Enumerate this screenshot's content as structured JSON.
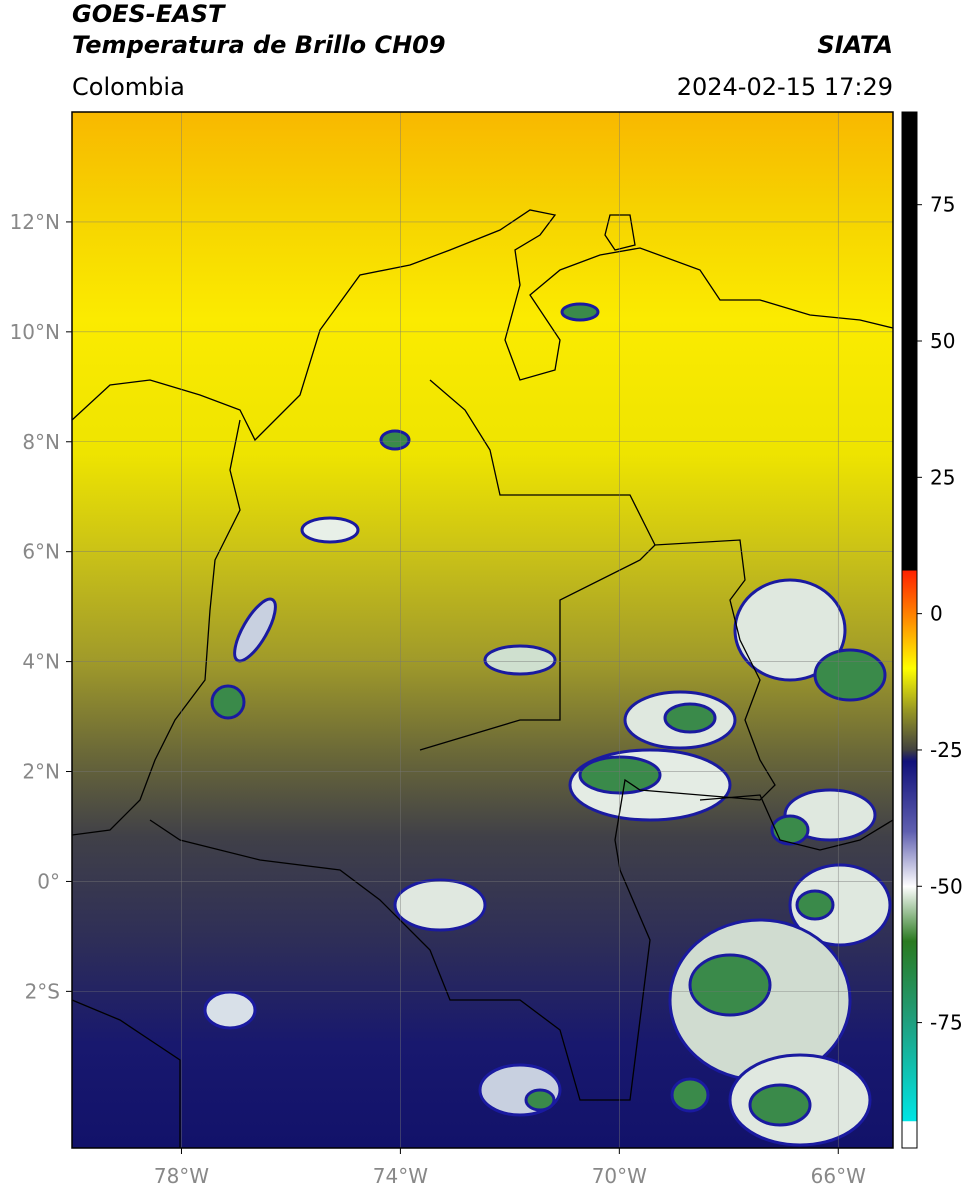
{
  "header": {
    "title": "GOES-EAST",
    "subtitle": "Temperatura de Brillo CH09",
    "region": "Colombia",
    "agency": "SIATA",
    "datetime": "2024-02-15 17:29"
  },
  "map": {
    "xlim": [
      -80,
      -65
    ],
    "ylim": [
      -4.85,
      14
    ],
    "xticks": [
      {
        "value": -78,
        "label": "78°W"
      },
      {
        "value": -74,
        "label": "74°W"
      },
      {
        "value": -70,
        "label": "70°W"
      },
      {
        "value": -66,
        "label": "66°W"
      }
    ],
    "yticks": [
      {
        "value": 12,
        "label": "12°N"
      },
      {
        "value": 10,
        "label": "10°N"
      },
      {
        "value": 8,
        "label": "8°N"
      },
      {
        "value": 6,
        "label": "6°N"
      },
      {
        "value": 4,
        "label": "4°N"
      },
      {
        "value": 2,
        "label": "2°N"
      },
      {
        "value": 0,
        "label": "0°"
      },
      {
        "value": -2,
        "label": "2°S"
      }
    ],
    "grid": true
  },
  "colorbar": {
    "lim": [
      -98,
      92
    ],
    "ticks": [
      75,
      50,
      25,
      0,
      -25,
      -50,
      -75
    ],
    "stops": [
      {
        "value": -98,
        "color": "#ffffff"
      },
      {
        "value": -93,
        "color": "#ffffff"
      },
      {
        "value": -93,
        "color": "#00e5e5"
      },
      {
        "value": -75,
        "color": "#20a080"
      },
      {
        "value": -60,
        "color": "#2a7a20"
      },
      {
        "value": -50,
        "color": "#ffffff"
      },
      {
        "value": -40,
        "color": "#6060b0"
      },
      {
        "value": -27,
        "color": "#10107a"
      },
      {
        "value": -25,
        "color": "#404040"
      },
      {
        "value": -17,
        "color": "#a0a020"
      },
      {
        "value": -10,
        "color": "#ffff00"
      },
      {
        "value": -2,
        "color": "#ff9900"
      },
      {
        "value": 8,
        "color": "#ff2000"
      },
      {
        "value": 8,
        "color": "#000000"
      },
      {
        "value": 92,
        "color": "#000000"
      }
    ]
  }
}
